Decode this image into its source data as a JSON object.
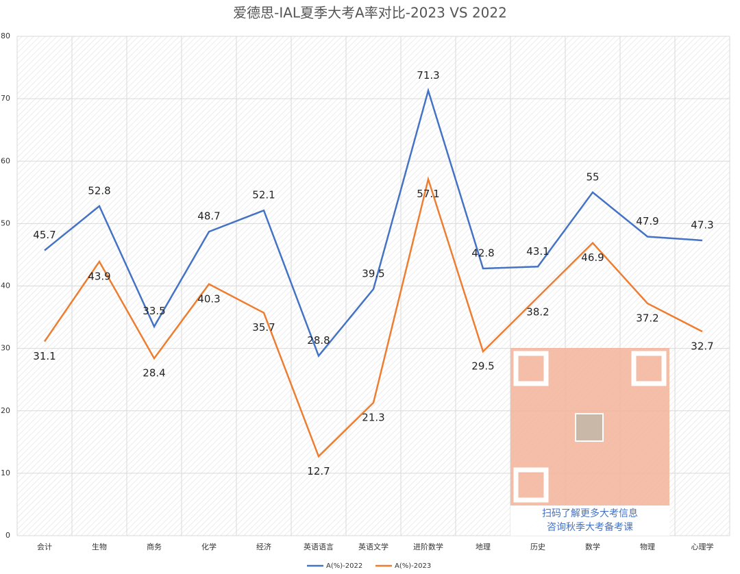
{
  "chart_data": {
    "type": "line",
    "title": "爱德思-IAL夏季大考A率对比-2023 VS 2022",
    "categories": [
      "会计",
      "生物",
      "商务",
      "化学",
      "经济",
      "英语语言",
      "英语文学",
      "进阶数学",
      "地理",
      "历史",
      "数学",
      "物理",
      "心理学"
    ],
    "series": [
      {
        "name": "A(%)-2022",
        "color": "#4472c4",
        "values": [
          45.7,
          52.8,
          33.5,
          48.7,
          52.1,
          28.8,
          39.5,
          71.3,
          42.8,
          43.1,
          55,
          47.9,
          47.3
        ]
      },
      {
        "name": "A(%)-2023",
        "color": "#ed7d31",
        "values": [
          31.1,
          43.9,
          28.4,
          40.3,
          35.7,
          12.7,
          21.3,
          57.1,
          29.5,
          38.2,
          46.9,
          37.2,
          32.7
        ]
      }
    ],
    "ylim": [
      0,
      80
    ],
    "yticks": [
      0,
      10,
      20,
      30,
      40,
      50,
      60,
      70,
      80
    ],
    "grid": true,
    "legend": "bottom",
    "annotations": [
      "扫码了解更多大考信息",
      "咨询秋季大考备考课"
    ]
  }
}
